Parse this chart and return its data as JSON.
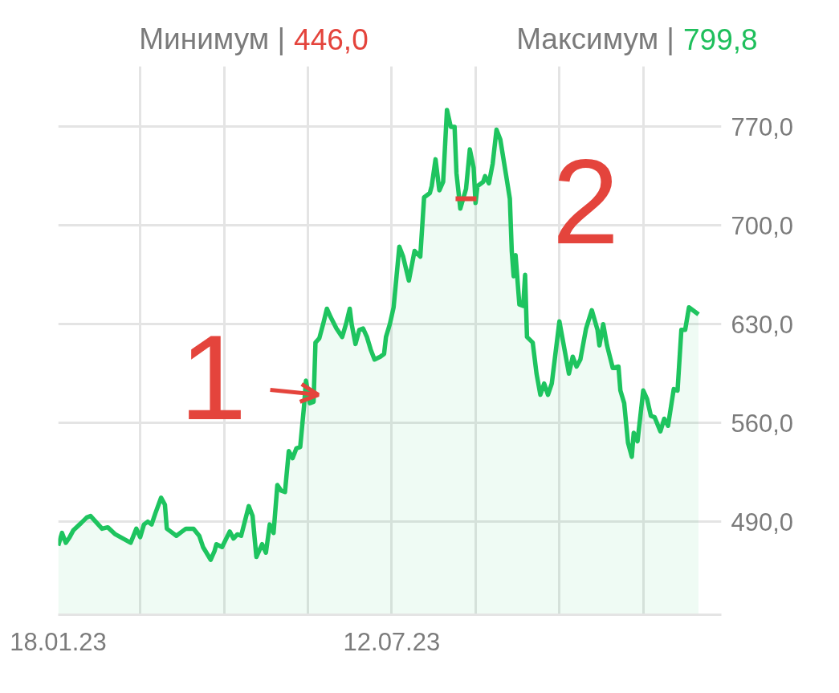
{
  "chart_data": {
    "type": "area",
    "color": "#1ec45f",
    "annotations": [
      "Минимум | 446,0",
      "Максимум | 799,8",
      {
        "text": "1",
        "x": "2023-06-01",
        "y": 580
      },
      {
        "text": "2",
        "x": "2023-08-20",
        "y": 719
      }
    ],
    "xlim": [
      "2023-01-18",
      "2024-01-01"
    ],
    "xticks": [
      {
        "value": "2023-01-18",
        "label": "18.01.23"
      },
      {
        "value": "2023-03-02",
        "label": null
      },
      {
        "value": "2023-04-15",
        "label": null
      },
      {
        "value": "2023-05-29",
        "label": null
      },
      {
        "value": "2023-07-12",
        "label": "12.07.23"
      },
      {
        "value": "2023-08-25",
        "label": null
      },
      {
        "value": "2023-10-08",
        "label": null
      },
      {
        "value": "2023-11-21",
        "label": null
      }
    ],
    "ylim": [
      424,
      813
    ],
    "yticks": [
      {
        "value": 490,
        "label": "490,0"
      },
      {
        "value": 560,
        "label": "560,0"
      },
      {
        "value": 630,
        "label": "630,0"
      },
      {
        "value": 700,
        "label": "700,0"
      },
      {
        "value": 770,
        "label": "770,0"
      }
    ],
    "grid": true,
    "x": [
      "2023-01-18",
      "2023-01-20",
      "2023-01-22",
      "2023-01-24",
      "2023-01-26",
      "2023-01-30",
      "2023-02-02",
      "2023-02-04",
      "2023-02-06",
      "2023-02-08",
      "2023-02-10",
      "2023-02-13",
      "2023-02-17",
      "2023-02-25",
      "2023-02-28",
      "2023-03-02",
      "2023-03-04",
      "2023-03-06",
      "2023-03-08",
      "2023-03-10",
      "2023-03-13",
      "2023-03-15",
      "2023-03-16",
      "2023-03-18",
      "2023-03-21",
      "2023-03-24",
      "2023-03-26",
      "2023-03-30",
      "2023-04-02",
      "2023-04-04",
      "2023-04-08",
      "2023-04-10",
      "2023-04-11",
      "2023-04-14",
      "2023-04-18",
      "2023-04-20",
      "2023-04-22",
      "2023-04-24",
      "2023-04-28",
      "2023-04-30",
      "2023-05-02",
      "2023-05-05",
      "2023-05-07",
      "2023-05-09",
      "2023-05-11",
      "2023-05-13",
      "2023-05-15",
      "2023-05-17",
      "2023-05-19",
      "2023-05-21",
      "2023-05-23",
      "2023-05-25",
      "2023-05-27",
      "2023-05-28",
      "2023-05-30",
      "2023-06-01",
      "2023-06-02",
      "2023-06-04",
      "2023-06-06",
      "2023-06-08",
      "2023-06-10",
      "2023-06-13",
      "2023-06-16",
      "2023-06-18",
      "2023-06-20",
      "2023-06-21",
      "2023-06-23",
      "2023-06-25",
      "2023-06-27",
      "2023-06-29",
      "2023-07-01",
      "2023-07-03",
      "2023-07-06",
      "2023-07-08",
      "2023-07-09",
      "2023-07-11",
      "2023-07-13",
      "2023-07-16",
      "2023-07-18",
      "2023-07-21",
      "2023-07-24",
      "2023-07-27",
      "2023-07-29",
      "2023-08-01",
      "2023-08-02",
      "2023-08-04",
      "2023-08-06",
      "2023-08-08",
      "2023-08-10",
      "2023-08-12",
      "2023-08-14",
      "2023-08-15",
      "2023-08-17",
      "2023-08-20",
      "2023-08-22",
      "2023-08-24",
      "2023-08-25",
      "2023-08-26",
      "2023-08-29",
      "2023-08-30",
      "2023-09-01",
      "2023-09-03",
      "2023-09-05",
      "2023-09-07",
      "2023-09-10",
      "2023-09-12",
      "2023-09-13",
      "2023-09-14",
      "2023-09-15",
      "2023-09-17",
      "2023-09-19",
      "2023-09-20",
      "2023-09-21",
      "2023-09-24",
      "2023-09-26",
      "2023-09-28",
      "2023-09-30",
      "2023-10-02",
      "2023-10-04",
      "2023-10-08",
      "2023-10-13",
      "2023-10-15",
      "2023-10-17",
      "2023-10-19",
      "2023-10-22",
      "2023-10-25",
      "2023-10-28",
      "2023-10-29",
      "2023-10-31",
      "2023-11-02",
      "2023-11-05",
      "2023-11-08",
      "2023-11-09",
      "2023-11-11",
      "2023-11-13",
      "2023-11-15",
      "2023-11-16",
      "2023-11-18",
      "2023-11-21",
      "2023-11-23",
      "2023-11-25",
      "2023-11-27",
      "2023-11-30",
      "2023-12-02",
      "2023-12-04",
      "2023-12-07",
      "2023-12-09",
      "2023-12-11",
      "2023-12-13",
      "2023-12-15",
      "2023-12-17",
      "2023-12-20"
    ],
    "values": [
      473,
      482,
      475,
      479,
      484,
      489,
      493,
      494,
      491,
      488,
      485,
      486,
      481,
      475,
      485,
      479,
      488,
      490,
      488,
      496,
      507,
      502,
      485,
      483,
      480,
      483,
      485,
      485,
      480,
      472,
      463,
      469,
      474,
      472,
      483,
      478,
      481,
      480,
      501,
      494,
      465,
      474,
      468,
      488,
      482,
      516,
      512,
      511,
      540,
      535,
      542,
      543,
      572,
      590,
      574,
      575,
      617,
      620,
      630,
      641,
      635,
      627,
      621,
      630,
      641,
      630,
      616,
      626,
      627,
      621,
      612,
      605,
      607,
      609,
      621,
      630,
      642,
      685,
      678,
      661,
      682,
      678,
      720,
      723,
      728,
      747,
      725,
      731,
      782,
      770,
      770,
      737,
      712,
      726,
      754,
      741,
      716,
      728,
      731,
      735,
      730,
      744,
      768,
      761,
      736,
      719,
      682,
      664,
      679,
      644,
      643,
      665,
      621,
      617,
      595,
      580,
      588,
      580,
      588,
      632,
      595,
      607,
      600,
      605,
      627,
      640,
      626,
      615,
      630,
      615,
      599,
      600,
      583,
      574,
      546,
      536,
      553,
      547,
      583,
      577,
      565,
      564,
      554,
      563,
      558,
      584,
      583,
      626,
      626,
      642,
      640,
      637
    ]
  }
}
